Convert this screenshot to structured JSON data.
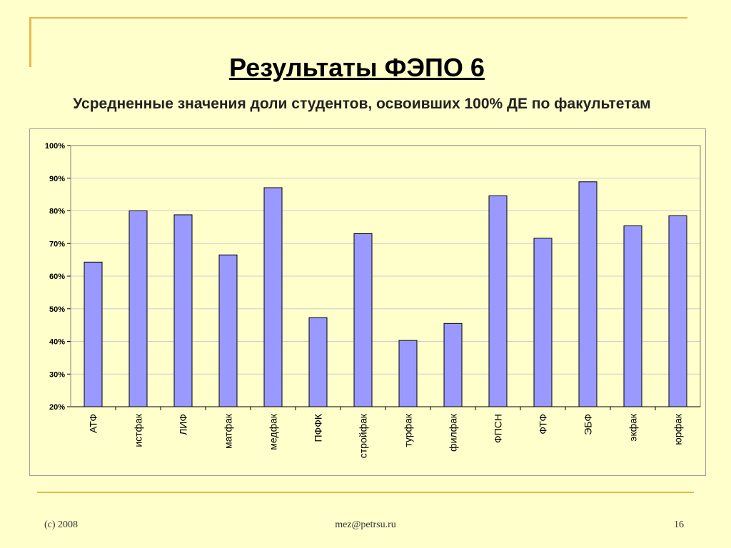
{
  "slide": {
    "title": "Результаты ФЭПО 6",
    "subtitle": "Усредненные значения доли студентов, освоивших 100% ДЕ по факультетам",
    "footer_left": "(c) 2008",
    "footer_center": "mez@petrsu.ru",
    "page_number": "16"
  },
  "colors": {
    "background": "#ffffcc",
    "bar_fill": "#9999ff",
    "accent_line": "#e8b84a"
  },
  "chart_data": {
    "type": "bar",
    "title": "",
    "xlabel": "",
    "ylabel": "",
    "categories": [
      "АТФ",
      "истфак",
      "ЛИФ",
      "матфак",
      "медфак",
      "ПФФК",
      "стройфак",
      "турфак",
      "филфак",
      "ФПСН",
      "ФТФ",
      "ЭБФ",
      "экфак",
      "юрфак"
    ],
    "values": [
      64.3,
      80.0,
      78.8,
      66.5,
      87.1,
      47.3,
      73.0,
      40.3,
      45.5,
      84.6,
      71.6,
      88.9,
      75.4,
      78.5
    ],
    "ylim": [
      20,
      100
    ],
    "ytick_step": 10,
    "y_format": "percent",
    "grid": true,
    "legend": "none"
  }
}
